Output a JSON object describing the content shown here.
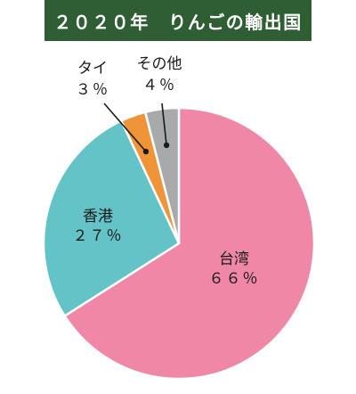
{
  "chart_data": {
    "type": "pie",
    "title": "２０２０年　りんごの輸出国",
    "slices": [
      {
        "label": "台湾",
        "value": 66,
        "value_text": "６６％",
        "color": "#ef88a7"
      },
      {
        "label": "香港",
        "value": 27,
        "value_text": "２７％",
        "color": "#63c3c6"
      },
      {
        "label": "タイ",
        "value": 3,
        "value_text": "３％",
        "color": "#f0943a"
      },
      {
        "label": "その他",
        "value": 4,
        "value_text": "４％",
        "color": "#a8a9ab"
      }
    ],
    "legend": "none",
    "grid": false
  }
}
